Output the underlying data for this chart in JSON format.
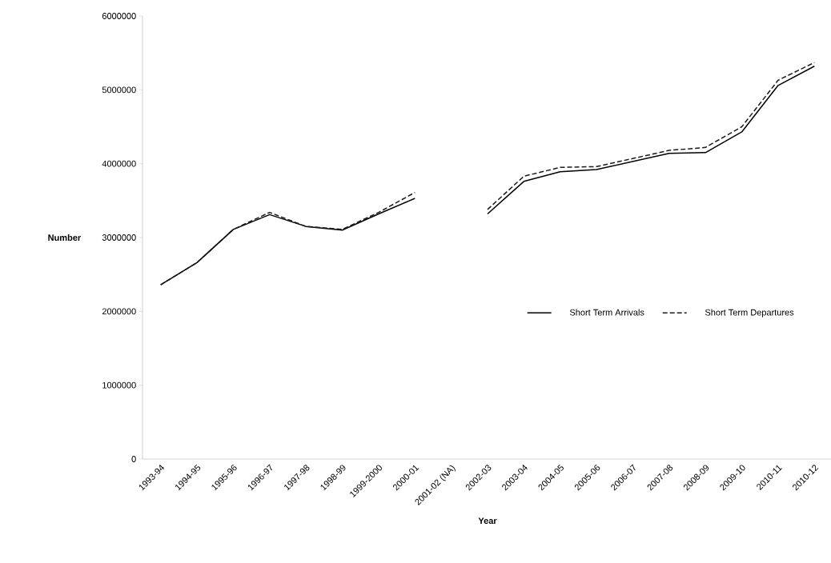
{
  "chart_data": {
    "type": "line",
    "xlabel": "Year",
    "ylabel": "Number",
    "categories": [
      "1993-94",
      "1994-95",
      "1995-96",
      "1996-97",
      "1997-98",
      "1998-99",
      "1999-2000",
      "2000-01",
      "2001-02 (NA)",
      "2002-03",
      "2003-04",
      "2004-05",
      "2005-06",
      "2006-07",
      "2007-08",
      "2008-09",
      "2009-10",
      "2010-11",
      "2010-12"
    ],
    "series": [
      {
        "name": "Short Term Arrivals",
        "color": "#000000",
        "line_style": "solid",
        "values": [
          2360000,
          2660000,
          3110000,
          3310000,
          3150000,
          3100000,
          3320000,
          3530000,
          null,
          3320000,
          3760000,
          3890000,
          3920000,
          4030000,
          4140000,
          4150000,
          4430000,
          5060000,
          5320000
        ]
      },
      {
        "name": "Short Term Departures",
        "color": "#1a1a1a",
        "line_style": "dashed",
        "values": [
          2360000,
          2660000,
          3110000,
          3340000,
          3150000,
          3110000,
          3340000,
          3610000,
          null,
          3380000,
          3830000,
          3950000,
          3960000,
          4070000,
          4180000,
          4220000,
          4500000,
          5130000,
          5370000
        ]
      }
    ],
    "ylim": [
      0,
      6000000
    ],
    "yticks": [
      0,
      1000000,
      2000000,
      3000000,
      4000000,
      5000000,
      6000000
    ],
    "grid": false,
    "legend": "right",
    "marker": "none"
  }
}
